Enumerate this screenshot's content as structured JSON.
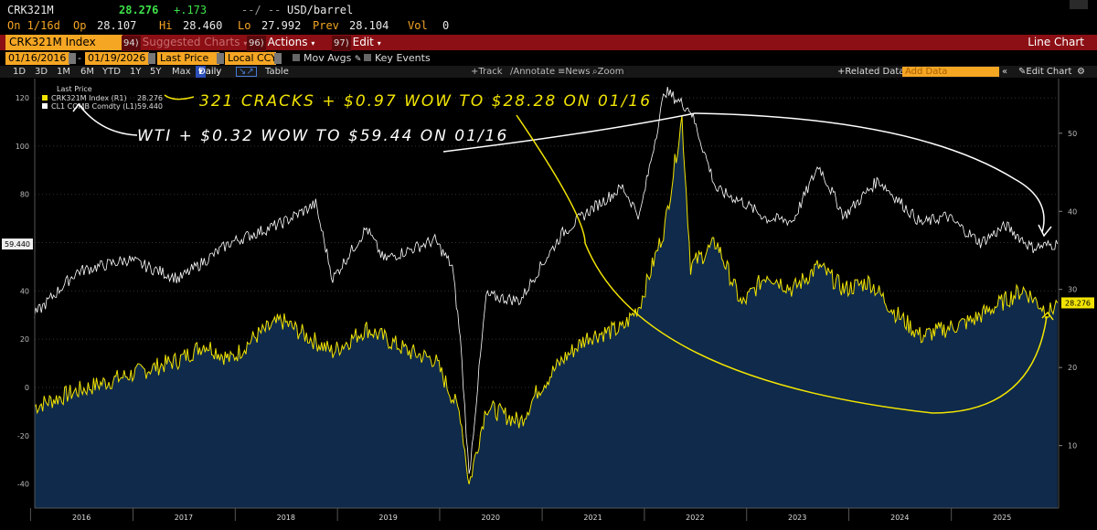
{
  "quote": {
    "ticker": "CRK321M",
    "last": "28.276",
    "change": "+.173",
    "dashes": "--/ --",
    "unit": "USD/barrel",
    "on_label": "On 1/16d",
    "op_label": "Op",
    "op_value": "28.107",
    "hi_label": "Hi",
    "hi_value": "28.460",
    "lo_label": "Lo",
    "lo_value": "27.992",
    "prev_label": "Prev",
    "prev_value": "28.104",
    "vol_label": "Vol",
    "vol_value": "0"
  },
  "cmdbar": {
    "security": "CRK321M Index",
    "suggested_num": "94)",
    "suggested": "Suggested Charts",
    "actions_num": "96)",
    "actions": "Actions",
    "edit_num": "97)",
    "edit": "Edit",
    "chart_type": "Line Chart"
  },
  "datebar": {
    "start_date": "01/16/2016",
    "end_date": "01/19/2026",
    "price_field": "Last Price",
    "currency": "Local CCY",
    "mov_avgs": "Mov Avgs",
    "key_events": "Key Events"
  },
  "periodbar": {
    "periods": [
      "1D",
      "3D",
      "1M",
      "6M",
      "YTD",
      "1Y",
      "5Y",
      "Max"
    ],
    "frequency": "Daily",
    "table": "Table",
    "tools": [
      "Track",
      "Annotate",
      "News",
      "Zoom"
    ],
    "related": "Related Data",
    "add_data_placeholder": "Add Data",
    "edit_chart": "Edit Chart"
  },
  "legend": {
    "header": "Last Price",
    "items": [
      {
        "label": "CRK321M Index  (R1)",
        "value": "28.276",
        "color": "#f2e400"
      },
      {
        "label": "CL1 COMB Comdty  (L1)",
        "value": "59.440",
        "color": "#ffffff"
      }
    ]
  },
  "annotations": {
    "cracks": "321 CRACKS + $0.97 WOW TO $28.28 ON 01/16",
    "wti": "WTI + $0.32 WOW TO $59.44 ON 01/16"
  },
  "axes": {
    "left_ticks": [
      "120",
      "100",
      "80",
      "60",
      "40",
      "20",
      "0",
      "-20",
      "-40"
    ],
    "right_ticks": [
      "50",
      "40",
      "30",
      "20",
      "10"
    ],
    "years": [
      "2016",
      "2017",
      "2018",
      "2019",
      "2020",
      "2021",
      "2022",
      "2023",
      "2024",
      "2025"
    ],
    "left_tag": "59.440",
    "right_tag": "28.276"
  },
  "chart_data": {
    "type": "line",
    "x_range": [
      "2016-01-16",
      "2026-01-19"
    ],
    "left_axis_range": [
      -50,
      128
    ],
    "right_axis_range": [
      2,
      57
    ],
    "series": [
      {
        "name": "CL1 COMB Comdty",
        "axis": "left",
        "color": "#ffffff",
        "x": [
          "2016-01",
          "2016-06",
          "2016-12",
          "2017-06",
          "2017-12",
          "2018-06",
          "2018-10",
          "2018-12",
          "2019-04",
          "2019-06",
          "2019-12",
          "2020-02",
          "2020-03",
          "2020-04",
          "2020-06",
          "2020-10",
          "2020-12",
          "2021-03",
          "2021-06",
          "2021-10",
          "2021-12",
          "2022-03",
          "2022-06",
          "2022-09",
          "2022-12",
          "2023-03",
          "2023-06",
          "2023-09",
          "2023-12",
          "2024-04",
          "2024-09",
          "2024-12",
          "2025-04",
          "2025-07",
          "2025-10",
          "2026-01"
        ],
        "y": [
          30,
          48,
          53,
          45,
          60,
          68,
          76,
          45,
          66,
          53,
          61,
          50,
          20,
          -37,
          38,
          36,
          48,
          64,
          73,
          83,
          71,
          123,
          115,
          82,
          77,
          70,
          69,
          92,
          71,
          86,
          68,
          71,
          60,
          67,
          58,
          59.44
        ]
      },
      {
        "name": "CRK321M Index",
        "axis": "right",
        "color": "#f2e400",
        "x": [
          "2016-01",
          "2016-06",
          "2016-12",
          "2017-06",
          "2017-09",
          "2017-12",
          "2018-03",
          "2018-06",
          "2018-12",
          "2019-04",
          "2019-09",
          "2019-12",
          "2020-03",
          "2020-04",
          "2020-06",
          "2020-10",
          "2020-12",
          "2021-03",
          "2021-06",
          "2021-10",
          "2021-12",
          "2022-03",
          "2022-05",
          "2022-06",
          "2022-09",
          "2022-12",
          "2023-03",
          "2023-06",
          "2023-09",
          "2023-12",
          "2024-03",
          "2024-06",
          "2024-09",
          "2024-12",
          "2025-03",
          "2025-06",
          "2025-09",
          "2025-12",
          "2026-01"
        ],
        "y": [
          15,
          17,
          19,
          21,
          23,
          21,
          24,
          26,
          22,
          25,
          22,
          21,
          14,
          5,
          15,
          13,
          17,
          21,
          24,
          25,
          28,
          38,
          52,
          33,
          36,
          28,
          32,
          30,
          33,
          30,
          31,
          27,
          24,
          25,
          26,
          28,
          30,
          27,
          28.276
        ]
      }
    ]
  }
}
